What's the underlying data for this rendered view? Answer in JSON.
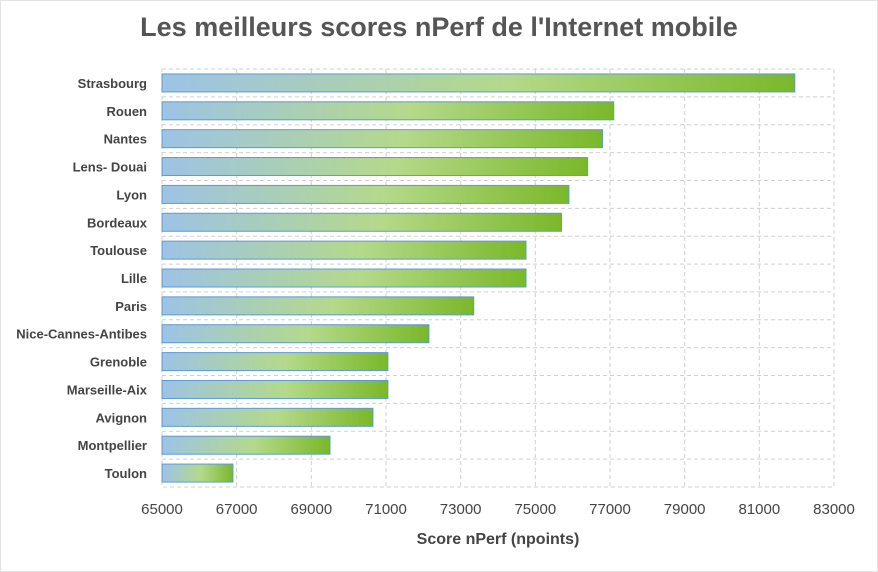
{
  "chart_data": {
    "type": "bar",
    "orientation": "horizontal",
    "title": "Les meilleurs scores nPerf de l'Internet mobile",
    "xlabel": "Score nPerf (npoints)",
    "ylabel": "",
    "categories": [
      "Strasbourg",
      "Rouen",
      "Nantes",
      "Lens- Douai",
      "Lyon",
      "Bordeaux",
      "Toulouse",
      "Lille",
      "Paris",
      "Nice-Cannes-Antibes",
      "Grenoble",
      "Marseille-Aix",
      "Avignon",
      "Montpellier",
      "Toulon"
    ],
    "values": [
      81950,
      77100,
      76800,
      76400,
      75900,
      75700,
      74750,
      74750,
      73350,
      72150,
      71050,
      71050,
      70650,
      69500,
      66900
    ],
    "xlim": [
      65000,
      83000
    ],
    "xticks": [
      "65000",
      "67000",
      "69000",
      "71000",
      "73000",
      "75000",
      "77000",
      "79000",
      "81000",
      "83000"
    ],
    "grid": true,
    "colors": {
      "bar_start": "#9dc3e6",
      "bar_mid": "#b4d98a",
      "bar_end": "#7ab82a",
      "bar_border": "#5b9bd5",
      "grid": "#d0d0d0",
      "text": "#444444"
    }
  }
}
